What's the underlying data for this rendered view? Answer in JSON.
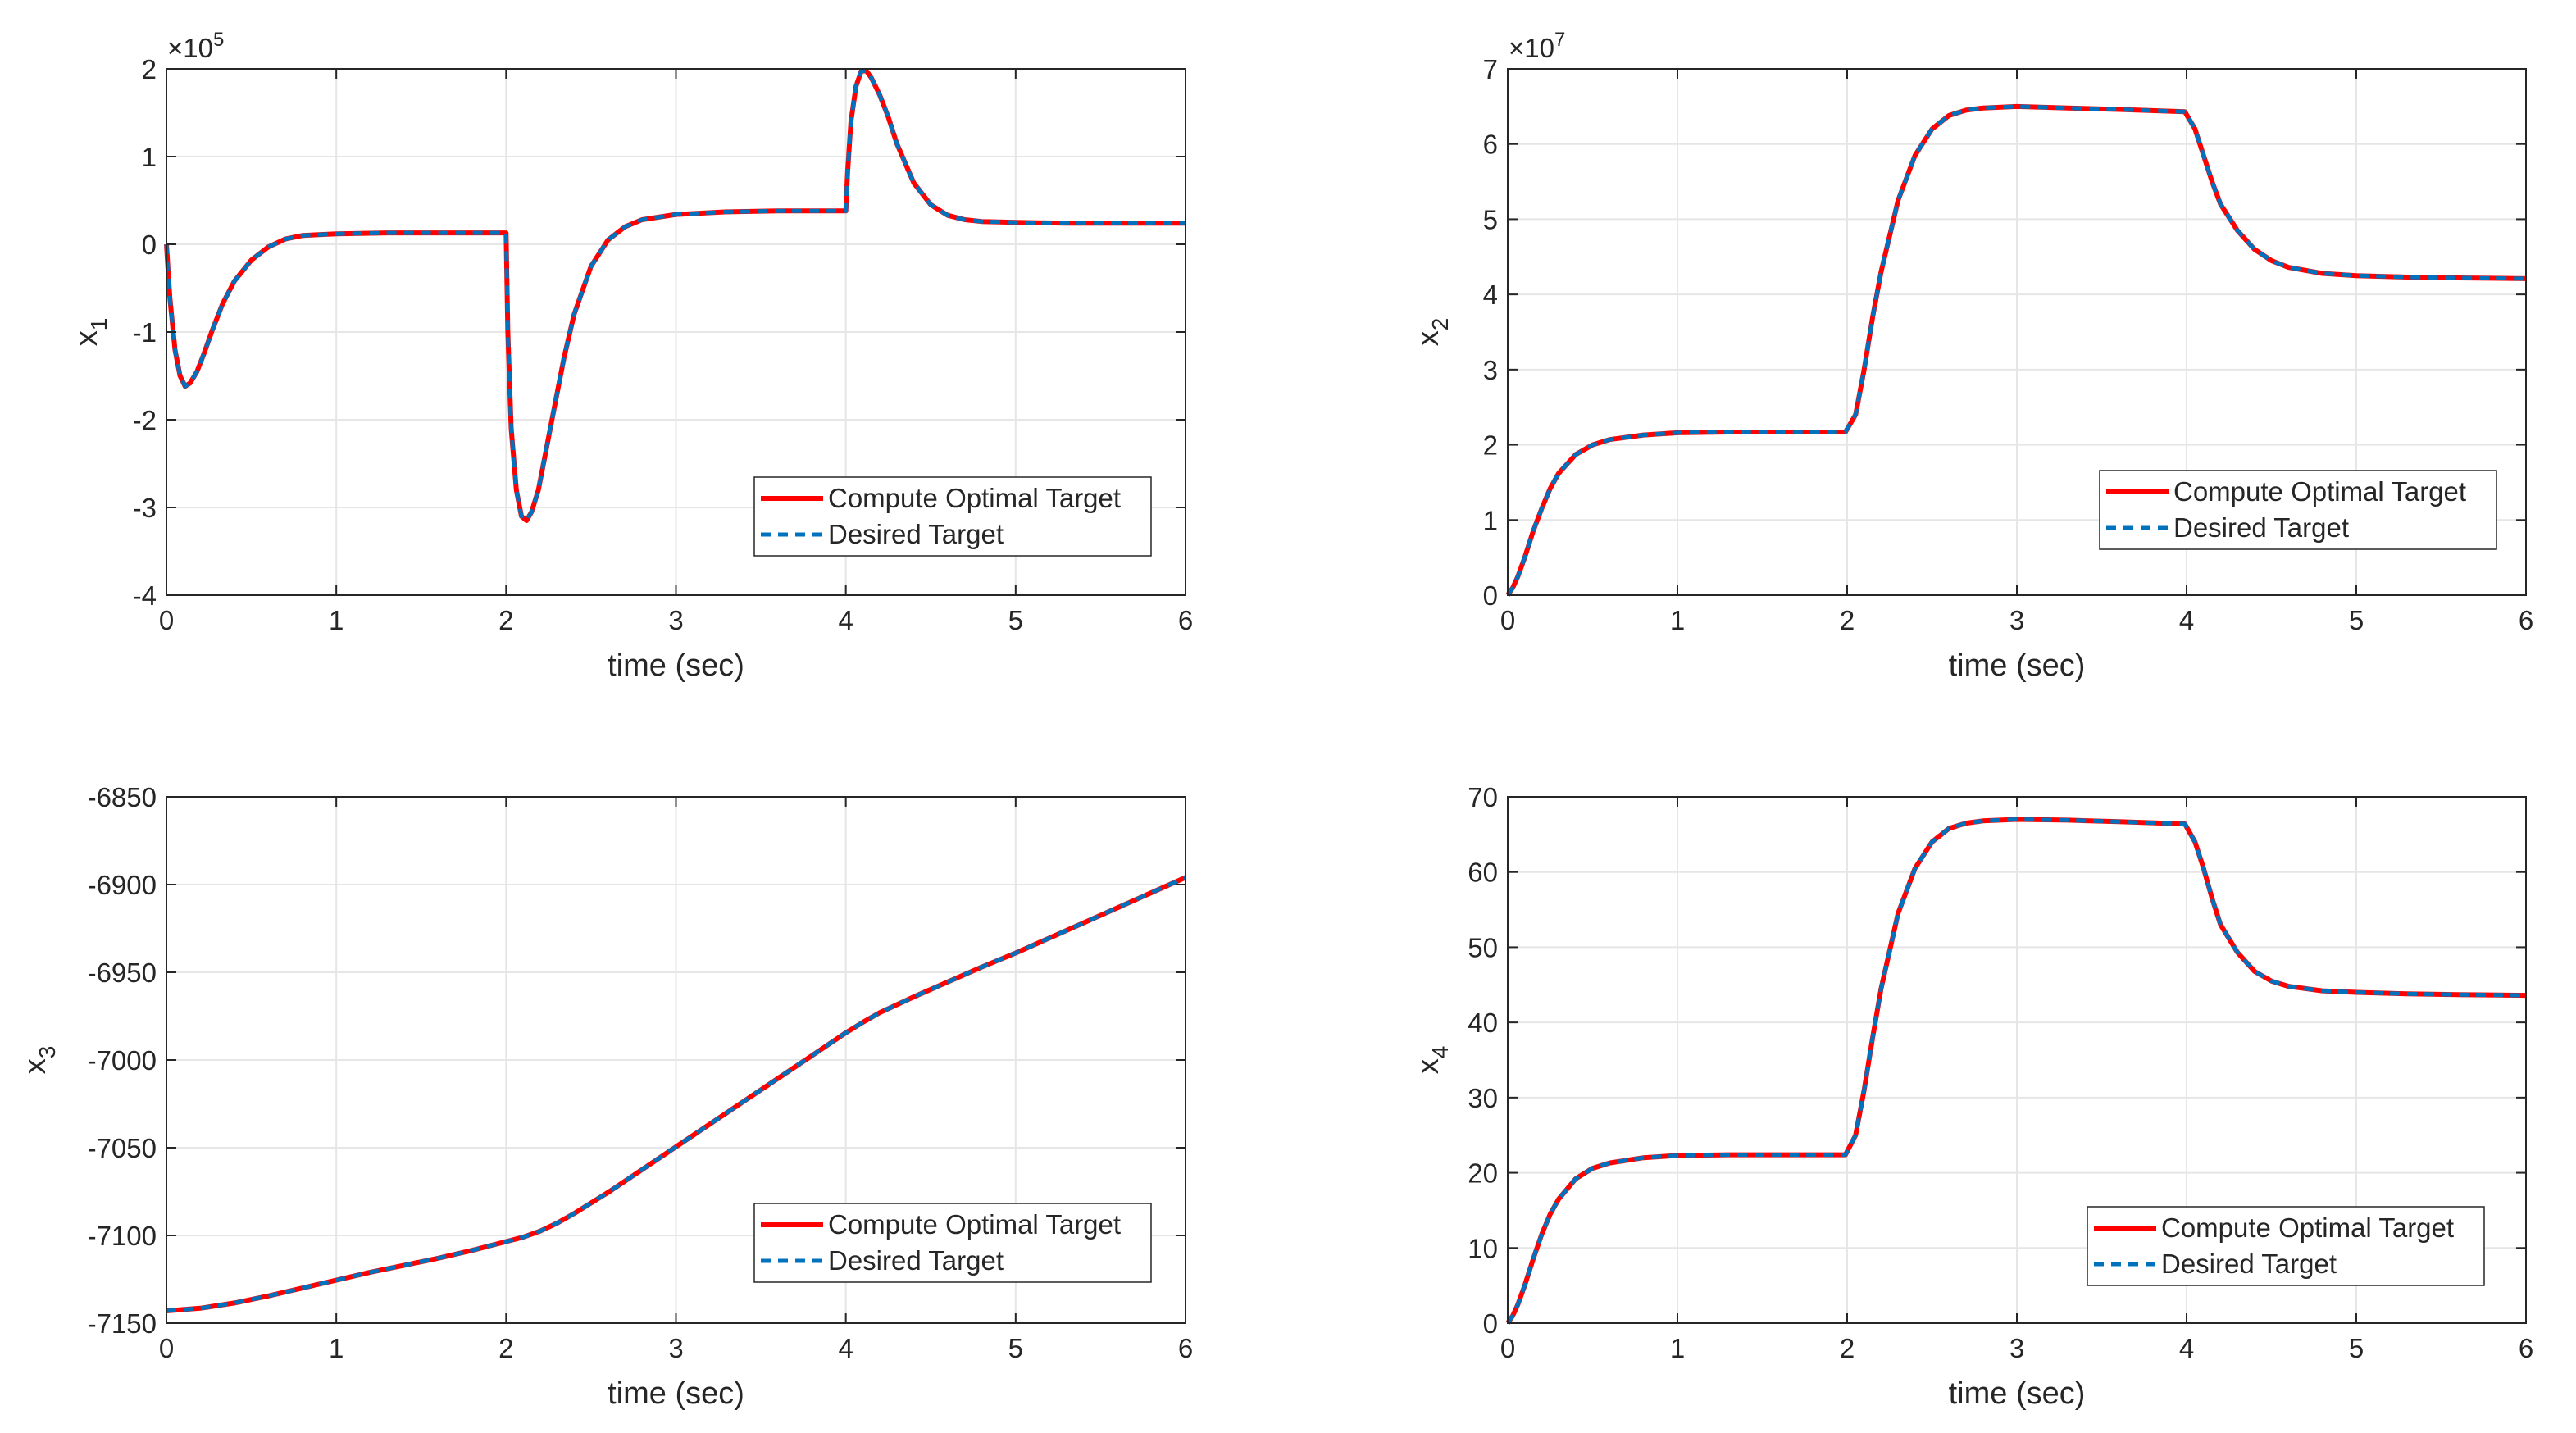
{
  "colors": {
    "compute": "#ff0000",
    "desired": "#0072bd",
    "grid": "#e6e6e6",
    "axis": "#262626",
    "background": "#ffffff"
  },
  "legend": {
    "compute_label": "Compute Optimal Target",
    "desired_label": "Desired Target"
  },
  "chart_data": [
    {
      "type": "line",
      "id": "x1",
      "ylabel": "x",
      "ylabel_sub": "1",
      "xlabel": "time (sec)",
      "exponent_base": "×10",
      "exponent_power": "5",
      "xlim": [
        0,
        6
      ],
      "ylim": [
        -4,
        2
      ],
      "xticks": [
        0,
        1,
        2,
        3,
        4,
        5,
        6
      ],
      "yticks": [
        -4,
        -3,
        -2,
        -1,
        0,
        1,
        2
      ],
      "legend_location": "bottom-right",
      "x": [
        0,
        0.02,
        0.05,
        0.08,
        0.11,
        0.14,
        0.18,
        0.22,
        0.27,
        0.33,
        0.4,
        0.5,
        0.6,
        0.7,
        0.8,
        1.0,
        1.3,
        1.6,
        1.99,
        2.0,
        2.01,
        2.03,
        2.06,
        2.09,
        2.12,
        2.15,
        2.19,
        2.23,
        2.28,
        2.34,
        2.4,
        2.5,
        2.6,
        2.7,
        2.8,
        3.0,
        3.3,
        3.6,
        3.99,
        4.0,
        4.01,
        4.03,
        4.06,
        4.09,
        4.12,
        4.15,
        4.2,
        4.25,
        4.3,
        4.4,
        4.5,
        4.6,
        4.7,
        4.8,
        5.0,
        5.3,
        5.6,
        6.0
      ],
      "series": [
        {
          "name": "Compute Optimal Target",
          "values": [
            0,
            -0.6,
            -1.2,
            -1.5,
            -1.62,
            -1.58,
            -1.45,
            -1.25,
            -0.98,
            -0.68,
            -0.42,
            -0.18,
            -0.03,
            0.06,
            0.1,
            0.12,
            0.13,
            0.13,
            0.13,
            0.13,
            -1.0,
            -2.1,
            -2.8,
            -3.1,
            -3.15,
            -3.05,
            -2.8,
            -2.4,
            -1.9,
            -1.3,
            -0.8,
            -0.25,
            0.05,
            0.2,
            0.28,
            0.34,
            0.37,
            0.38,
            0.38,
            0.38,
            0.8,
            1.4,
            1.8,
            1.97,
            1.98,
            1.9,
            1.7,
            1.45,
            1.15,
            0.7,
            0.45,
            0.33,
            0.28,
            0.26,
            0.25,
            0.24,
            0.24,
            0.24
          ]
        },
        {
          "name": "Desired Target",
          "values": [
            0,
            -0.6,
            -1.2,
            -1.5,
            -1.62,
            -1.58,
            -1.45,
            -1.25,
            -0.98,
            -0.68,
            -0.42,
            -0.18,
            -0.03,
            0.06,
            0.1,
            0.12,
            0.13,
            0.13,
            0.13,
            0.13,
            -1.0,
            -2.1,
            -2.8,
            -3.1,
            -3.15,
            -3.05,
            -2.8,
            -2.4,
            -1.9,
            -1.3,
            -0.8,
            -0.25,
            0.05,
            0.2,
            0.28,
            0.34,
            0.37,
            0.38,
            0.38,
            0.38,
            0.8,
            1.4,
            1.8,
            1.97,
            1.98,
            1.9,
            1.7,
            1.45,
            1.15,
            0.7,
            0.45,
            0.33,
            0.28,
            0.26,
            0.25,
            0.24,
            0.24,
            0.24
          ]
        }
      ]
    },
    {
      "type": "line",
      "id": "x2",
      "ylabel": "x",
      "ylabel_sub": "2",
      "xlabel": "time (sec)",
      "exponent_base": "×10",
      "exponent_power": "7",
      "xlim": [
        0,
        6
      ],
      "ylim": [
        0,
        7
      ],
      "xticks": [
        0,
        1,
        2,
        3,
        4,
        5,
        6
      ],
      "yticks": [
        0,
        1,
        2,
        3,
        4,
        5,
        6,
        7
      ],
      "legend_location": "right",
      "x": [
        0,
        0.03,
        0.06,
        0.1,
        0.15,
        0.2,
        0.25,
        0.3,
        0.4,
        0.5,
        0.6,
        0.8,
        1.0,
        1.3,
        1.6,
        1.99,
        2.05,
        2.1,
        2.15,
        2.2,
        2.3,
        2.4,
        2.5,
        2.6,
        2.7,
        2.8,
        3.0,
        3.3,
        3.6,
        3.99,
        4.05,
        4.1,
        4.15,
        4.2,
        4.3,
        4.4,
        4.5,
        4.6,
        4.8,
        5.0,
        5.3,
        5.6,
        6.0
      ],
      "series": [
        {
          "name": "Compute Optimal Target",
          "values": [
            0,
            0.1,
            0.25,
            0.5,
            0.85,
            1.15,
            1.42,
            1.62,
            1.87,
            2.0,
            2.07,
            2.13,
            2.16,
            2.17,
            2.17,
            2.17,
            2.4,
            3.0,
            3.7,
            4.3,
            5.25,
            5.85,
            6.2,
            6.38,
            6.45,
            6.48,
            6.5,
            6.48,
            6.46,
            6.43,
            6.2,
            5.85,
            5.5,
            5.2,
            4.85,
            4.6,
            4.45,
            4.36,
            4.28,
            4.25,
            4.23,
            4.22,
            4.21
          ]
        },
        {
          "name": "Desired Target",
          "values": [
            0,
            0.1,
            0.25,
            0.5,
            0.85,
            1.15,
            1.42,
            1.62,
            1.87,
            2.0,
            2.07,
            2.13,
            2.16,
            2.17,
            2.17,
            2.17,
            2.4,
            3.0,
            3.7,
            4.3,
            5.25,
            5.85,
            6.2,
            6.38,
            6.45,
            6.48,
            6.5,
            6.48,
            6.46,
            6.43,
            6.2,
            5.85,
            5.5,
            5.2,
            4.85,
            4.6,
            4.45,
            4.36,
            4.28,
            4.25,
            4.23,
            4.22,
            4.21
          ]
        }
      ]
    },
    {
      "type": "line",
      "id": "x3",
      "ylabel": "x",
      "ylabel_sub": "3",
      "xlabel": "time (sec)",
      "exponent_base": "",
      "exponent_power": "",
      "xlim": [
        0,
        6
      ],
      "ylim": [
        -7150,
        -6850
      ],
      "xticks": [
        0,
        1,
        2,
        3,
        4,
        5,
        6
      ],
      "yticks": [
        -7150,
        -7100,
        -7050,
        -7000,
        -6950,
        -6900,
        -6850
      ],
      "legend_location": "bottom-right",
      "x": [
        0,
        0.2,
        0.4,
        0.6,
        0.8,
        1.0,
        1.2,
        1.4,
        1.6,
        1.8,
        2.0,
        2.1,
        2.2,
        2.3,
        2.4,
        2.6,
        2.8,
        3.0,
        3.2,
        3.4,
        3.6,
        3.8,
        4.0,
        4.1,
        4.2,
        4.4,
        4.6,
        4.8,
        5.0,
        5.5,
        6.0
      ],
      "series": [
        {
          "name": "Compute Optimal Target",
          "values": [
            -7143,
            -7141.5,
            -7138.5,
            -7134.5,
            -7130,
            -7125.5,
            -7121,
            -7117,
            -7113,
            -7108.5,
            -7103.5,
            -7101,
            -7097.5,
            -7093,
            -7087.5,
            -7075.5,
            -7062.5,
            -7049.5,
            -7036.5,
            -7023.5,
            -7010.5,
            -6997.5,
            -6984.5,
            -6978.5,
            -6973,
            -6964,
            -6955.5,
            -6947,
            -6939,
            -6917.5,
            -6896
          ]
        },
        {
          "name": "Desired Target",
          "values": [
            -7143,
            -7141.5,
            -7138.5,
            -7134.5,
            -7130,
            -7125.5,
            -7121,
            -7117,
            -7113,
            -7108.5,
            -7103.5,
            -7101,
            -7097.5,
            -7093,
            -7087.5,
            -7075.5,
            -7062.5,
            -7049.5,
            -7036.5,
            -7023.5,
            -7010.5,
            -6997.5,
            -6984.5,
            -6978.5,
            -6973,
            -6964,
            -6955.5,
            -6947,
            -6939,
            -6917.5,
            -6896
          ]
        }
      ]
    },
    {
      "type": "line",
      "id": "x4",
      "ylabel": "x",
      "ylabel_sub": "4",
      "xlabel": "time (sec)",
      "exponent_base": "",
      "exponent_power": "",
      "xlim": [
        0,
        6
      ],
      "ylim": [
        0,
        70
      ],
      "xticks": [
        0,
        1,
        2,
        3,
        4,
        5,
        6
      ],
      "yticks": [
        0,
        10,
        20,
        30,
        40,
        50,
        60,
        70
      ],
      "legend_location": "bottom-right",
      "x": [
        0,
        0.03,
        0.06,
        0.1,
        0.15,
        0.2,
        0.25,
        0.3,
        0.4,
        0.5,
        0.6,
        0.8,
        1.0,
        1.3,
        1.6,
        1.99,
        2.05,
        2.1,
        2.15,
        2.2,
        2.3,
        2.4,
        2.5,
        2.6,
        2.7,
        2.8,
        3.0,
        3.3,
        3.6,
        3.99,
        4.05,
        4.1,
        4.15,
        4.2,
        4.3,
        4.4,
        4.5,
        4.6,
        4.8,
        5.0,
        5.3,
        5.6,
        6.0
      ],
      "series": [
        {
          "name": "Compute Optimal Target",
          "values": [
            0,
            1,
            2.5,
            5,
            8.5,
            11.8,
            14.5,
            16.5,
            19.2,
            20.6,
            21.3,
            22.0,
            22.3,
            22.4,
            22.4,
            22.4,
            25,
            31,
            38,
            44.5,
            54.5,
            60.5,
            64,
            65.8,
            66.5,
            66.8,
            67,
            66.9,
            66.7,
            66.4,
            64,
            60.5,
            56.5,
            53,
            49.3,
            46.8,
            45.5,
            44.8,
            44.2,
            44,
            43.8,
            43.7,
            43.6
          ]
        },
        {
          "name": "Desired Target",
          "values": [
            0,
            1,
            2.5,
            5,
            8.5,
            11.8,
            14.5,
            16.5,
            19.2,
            20.6,
            21.3,
            22.0,
            22.3,
            22.4,
            22.4,
            22.4,
            25,
            31,
            38,
            44.5,
            54.5,
            60.5,
            64,
            65.8,
            66.5,
            66.8,
            67,
            66.9,
            66.7,
            66.4,
            64,
            60.5,
            56.5,
            53,
            49.3,
            46.8,
            45.5,
            44.8,
            44.2,
            44,
            43.8,
            43.7,
            43.6
          ]
        }
      ]
    }
  ]
}
